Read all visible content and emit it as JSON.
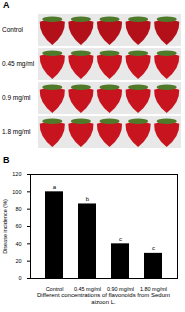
{
  "panel_a": {
    "label": "A",
    "rows": [
      "Control",
      "0.45 mg/ml",
      "0.9 mg/ml",
      "1.8 mg/ml"
    ]
  },
  "chart_data": {
    "type": "bar",
    "title": "B",
    "x_label": "Different concentrations of flavonoids from Sedum aizoon L.",
    "y_label": "Disease incidence (%)",
    "categories": [
      "Control",
      "0.45 mg/ml",
      "0.90 mg/ml",
      "1.80 mg/ml"
    ],
    "values": [
      100,
      86,
      40,
      29
    ],
    "annotations": [
      "a",
      "b",
      "c",
      "c"
    ],
    "color": "#000000",
    "ylim": [
      0,
      120
    ],
    "yticks": [
      0,
      20,
      40,
      60,
      80,
      100,
      120
    ],
    "grid": false
  }
}
